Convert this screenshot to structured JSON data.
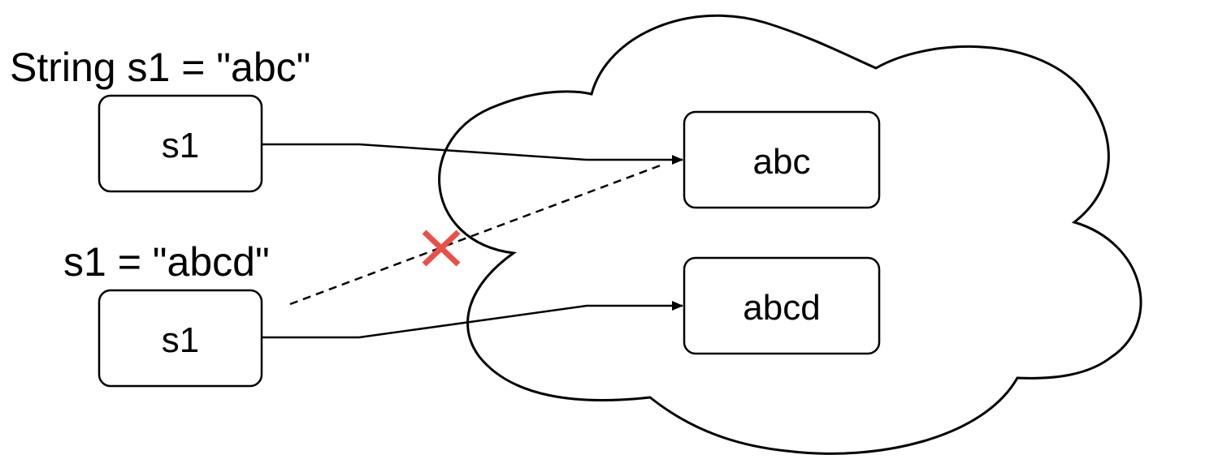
{
  "captions": {
    "declaration": "String s1 = \"abc\"",
    "reassignment": "s1 = \"abcd\""
  },
  "stack": {
    "first_ref": "s1",
    "second_ref": "s1"
  },
  "pool": {
    "old_value": "abc",
    "new_value": "abcd"
  },
  "marks": {
    "broken_link_icon": "cross-icon",
    "broken_link_color": "#e8504a"
  }
}
